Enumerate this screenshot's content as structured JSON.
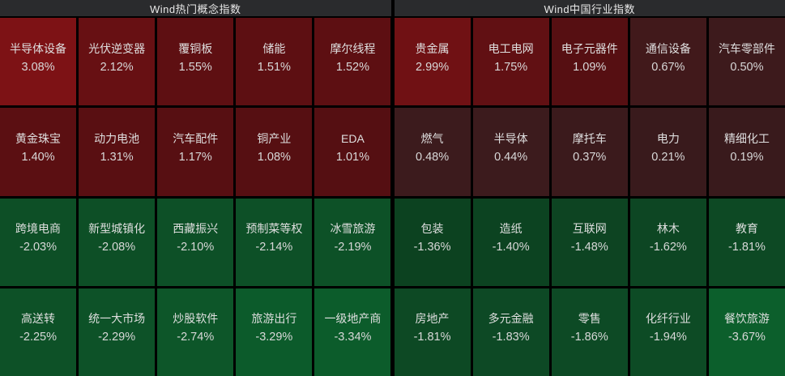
{
  "colors": {
    "background": "#000000",
    "header_bg": "#2a2b2d",
    "header_text": "#e8e8e8",
    "cell_text": "#dcdcdc",
    "gain_strong": "#7d1215",
    "gain_weak": "#391a1c",
    "loss_weak": "#0c4220",
    "loss_strong": "#0c5f2c"
  },
  "chart_data": [
    {
      "type": "heatmap",
      "title": "Wind热门概念指数",
      "rows": 4,
      "cols": 5,
      "value_unit": "%",
      "cells": [
        {
          "name": "半导体设备",
          "value": 3.08,
          "label": "3.08%",
          "color": "#7d1215"
        },
        {
          "name": "光伏逆变器",
          "value": 2.12,
          "label": "2.12%",
          "color": "#671013"
        },
        {
          "name": "覆铜板",
          "value": 1.55,
          "label": "1.55%",
          "color": "#5e0f12"
        },
        {
          "name": "储能",
          "value": 1.51,
          "label": "1.51%",
          "color": "#5d0f12"
        },
        {
          "name": "摩尔线程",
          "value": 1.52,
          "label": "1.52%",
          "color": "#5d0f12"
        },
        {
          "name": "黄金珠宝",
          "value": 1.4,
          "label": "1.40%",
          "color": "#5b0f12"
        },
        {
          "name": "动力电池",
          "value": 1.31,
          "label": "1.31%",
          "color": "#590f12"
        },
        {
          "name": "汽车配件",
          "value": 1.17,
          "label": "1.17%",
          "color": "#570f12"
        },
        {
          "name": "铜产业",
          "value": 1.08,
          "label": "1.08%",
          "color": "#560f12"
        },
        {
          "name": "EDA",
          "value": 1.01,
          "label": "1.01%",
          "color": "#550f12"
        },
        {
          "name": "跨境电商",
          "value": -2.03,
          "label": "-2.03%",
          "color": "#0d4f26"
        },
        {
          "name": "新型城镇化",
          "value": -2.08,
          "label": "-2.08%",
          "color": "#0d4f26"
        },
        {
          "name": "西藏振兴",
          "value": -2.1,
          "label": "-2.10%",
          "color": "#0d5027"
        },
        {
          "name": "预制菜等权",
          "value": -2.14,
          "label": "-2.14%",
          "color": "#0d5027"
        },
        {
          "name": "冰雪旅游",
          "value": -2.19,
          "label": "-2.19%",
          "color": "#0d5127"
        },
        {
          "name": "高送转",
          "value": -2.25,
          "label": "-2.25%",
          "color": "#0d5127"
        },
        {
          "name": "统一大市场",
          "value": -2.29,
          "label": "-2.29%",
          "color": "#0d5228"
        },
        {
          "name": "炒股软件",
          "value": -2.74,
          "label": "-2.74%",
          "color": "#0d5629"
        },
        {
          "name": "旅游出行",
          "value": -3.29,
          "label": "-3.29%",
          "color": "#0c5b2b"
        },
        {
          "name": "一级地产商",
          "value": -3.34,
          "label": "-3.34%",
          "color": "#0c5c2b"
        }
      ]
    },
    {
      "type": "heatmap",
      "title": "Wind中国行业指数",
      "rows": 4,
      "cols": 5,
      "value_unit": "%",
      "cells": [
        {
          "name": "贵金属",
          "value": 2.99,
          "label": "2.99%",
          "color": "#701114"
        },
        {
          "name": "电工电网",
          "value": 1.75,
          "label": "1.75%",
          "color": "#611013"
        },
        {
          "name": "电子元器件",
          "value": 1.09,
          "label": "1.09%",
          "color": "#560f12"
        },
        {
          "name": "通信设备",
          "value": 0.67,
          "label": "0.67%",
          "color": "#41191b"
        },
        {
          "name": "汽车零部件",
          "value": 0.5,
          "label": "0.50%",
          "color": "#3d1a1c"
        },
        {
          "name": "燃气",
          "value": 0.48,
          "label": "0.48%",
          "color": "#3c1b1d"
        },
        {
          "name": "半导体",
          "value": 0.44,
          "label": "0.44%",
          "color": "#3c1b1d"
        },
        {
          "name": "摩托车",
          "value": 0.37,
          "label": "0.37%",
          "color": "#3b1a1c"
        },
        {
          "name": "电力",
          "value": 0.21,
          "label": "0.21%",
          "color": "#391a1c"
        },
        {
          "name": "精细化工",
          "value": 0.19,
          "label": "0.19%",
          "color": "#391a1c"
        },
        {
          "name": "包装",
          "value": -1.36,
          "label": "-1.36%",
          "color": "#0c4220"
        },
        {
          "name": "造纸",
          "value": -1.4,
          "label": "-1.40%",
          "color": "#0c4321"
        },
        {
          "name": "互联网",
          "value": -1.48,
          "label": "-1.48%",
          "color": "#0d4422"
        },
        {
          "name": "林木",
          "value": -1.62,
          "label": "-1.62%",
          "color": "#0d4623"
        },
        {
          "name": "教育",
          "value": -1.81,
          "label": "-1.81%",
          "color": "#0d4924"
        },
        {
          "name": "房地产",
          "value": -1.81,
          "label": "-1.81%",
          "color": "#0d4924"
        },
        {
          "name": "多元金融",
          "value": -1.83,
          "label": "-1.83%",
          "color": "#0d4925"
        },
        {
          "name": "零售",
          "value": -1.86,
          "label": "-1.86%",
          "color": "#0d4a25"
        },
        {
          "name": "化纤行业",
          "value": -1.94,
          "label": "-1.94%",
          "color": "#0d4b25"
        },
        {
          "name": "餐饮旅游",
          "value": -3.67,
          "label": "-3.67%",
          "color": "#0c5f2c"
        }
      ]
    }
  ]
}
